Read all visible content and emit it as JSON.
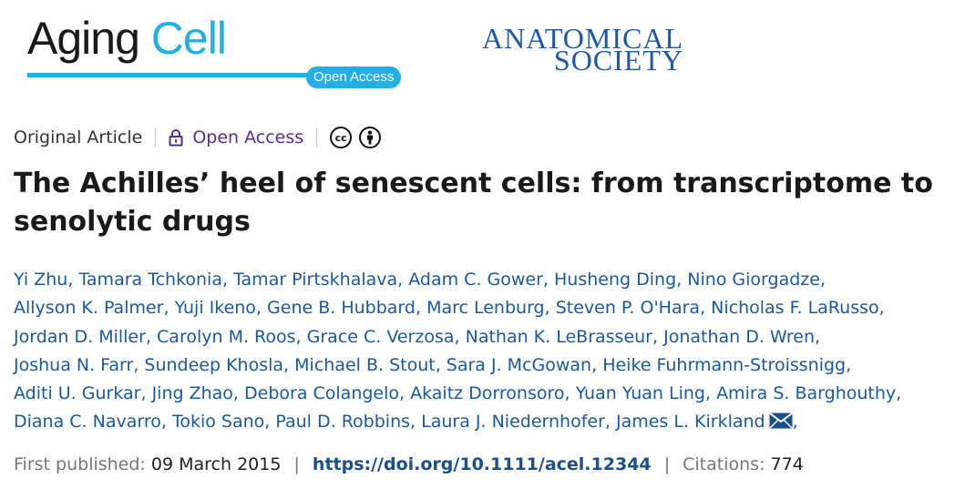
{
  "header": {
    "journal_name_part1": "Aging",
    "journal_name_part2": "Cell",
    "open_access_badge": "Open Access",
    "society_line1": "ANATOMICAL",
    "society_line2": "SOCIETY",
    "colors": {
      "journal_blue": "#23aee4",
      "society_blue": "#1f5aa8"
    }
  },
  "meta": {
    "article_type": "Original Article",
    "access_label": "Open Access",
    "icons": [
      "lock-icon",
      "cc-icon",
      "by-attribution-icon"
    ]
  },
  "title": "The Achilles’ heel of senescent cells: from transcriptome to senolytic drugs",
  "authors": [
    "Yi Zhu",
    "Tamara Tchkonia",
    "Tamar Pirtskhalava",
    "Adam C. Gower",
    "Husheng Ding",
    "Nino Giorgadze",
    "Allyson K. Palmer",
    "Yuji Ikeno",
    "Gene B. Hubbard",
    "Marc Lenburg",
    "Steven P. O'Hara",
    "Nicholas F. LaRusso",
    "Jordan D. Miller",
    "Carolyn M. Roos",
    "Grace C. Verzosa",
    "Nathan K. LeBrasseur",
    "Jonathan D. Wren",
    "Joshua N. Farr",
    "Sundeep Khosla",
    "Michael B. Stout",
    "Sara J. McGowan",
    "Heike Fuhrmann-Stroissnigg",
    "Aditi U. Gurkar",
    "Jing Zhao",
    "Debora Colangelo",
    "Akaitz Dorronsoro",
    "Yuan Yuan Ling",
    "Amira S. Barghouthy",
    "Diana C. Navarro",
    "Tokio Sano",
    "Paul D. Robbins",
    "Laura J. Niedernhofer",
    "James L. Kirkland"
  ],
  "publication": {
    "first_published_label": "First published:",
    "first_published_date": "09 March 2015",
    "separator": "|",
    "doi": "https://doi.org/10.1111/acel.12344",
    "citations_label": "Citations:",
    "citations_count": "774"
  }
}
